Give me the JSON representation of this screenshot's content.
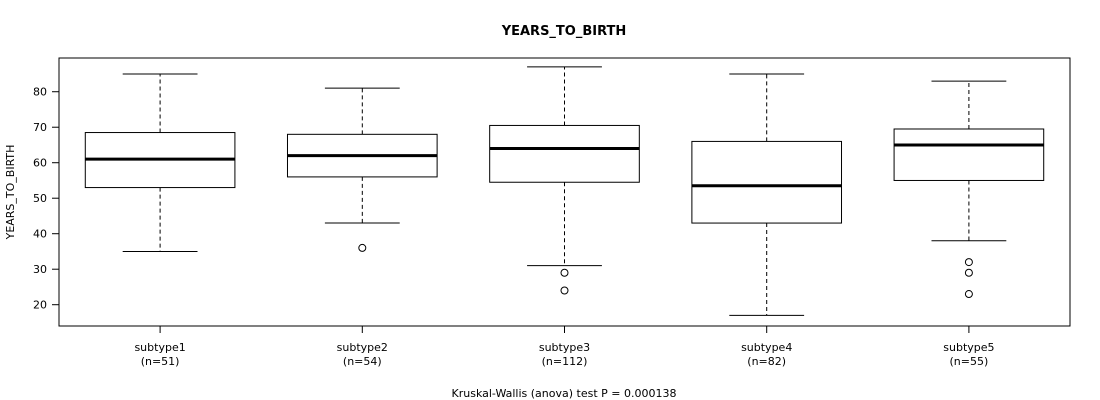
{
  "chart_data": {
    "type": "boxplot",
    "title": "YEARS_TO_BIRTH",
    "ylabel": "YEARS_TO_BIRTH",
    "xlabel": "",
    "footnote": "Kruskal-Wallis (anova) test P = 0.000138",
    "ylim": [
      14.0,
      89.5
    ],
    "yticks": [
      20,
      30,
      40,
      50,
      60,
      70,
      80
    ],
    "groups": [
      {
        "name": "subtype1",
        "n_label": "(n=51)",
        "min": 35,
        "q1": 53,
        "median": 61,
        "q3": 68.5,
        "max": 85,
        "outliers": []
      },
      {
        "name": "subtype2",
        "n_label": "(n=54)",
        "min": 43,
        "q1": 56,
        "median": 62,
        "q3": 68,
        "max": 81,
        "outliers": [
          36
        ]
      },
      {
        "name": "subtype3",
        "n_label": "(n=112)",
        "min": 31,
        "q1": 54.5,
        "median": 64,
        "q3": 70.5,
        "max": 87,
        "outliers": [
          29,
          24
        ]
      },
      {
        "name": "subtype4",
        "n_label": "(n=82)",
        "min": 17,
        "q1": 43,
        "median": 53.5,
        "q3": 66,
        "max": 85,
        "outliers": []
      },
      {
        "name": "subtype5",
        "n_label": "(n=55)",
        "min": 38,
        "q1": 55,
        "median": 65,
        "q3": 69.5,
        "max": 83,
        "outliers": [
          32,
          29,
          23
        ]
      }
    ]
  }
}
